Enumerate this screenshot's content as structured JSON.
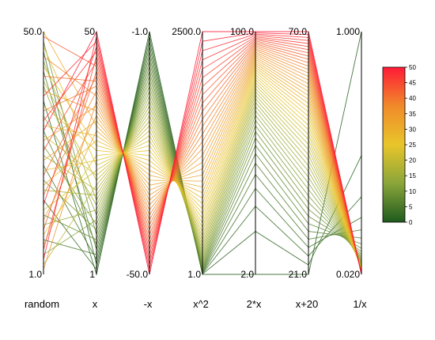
{
  "chart_data": {
    "type": "parallel-coordinates",
    "title": "",
    "axes": [
      {
        "name": "random",
        "top_label": "50.0",
        "bottom_label": "1.0",
        "range": [
          1,
          50
        ],
        "scale": "linear",
        "inverted": false
      },
      {
        "name": "x",
        "top_label": "50",
        "bottom_label": "1",
        "range": [
          1,
          50
        ],
        "scale": "linear",
        "inverted": false
      },
      {
        "name": "-x",
        "top_label": "-1.0",
        "bottom_label": "-50.0",
        "range": [
          -50,
          -1
        ],
        "scale": "linear",
        "inverted": false
      },
      {
        "name": "x^2",
        "top_label": "2500.0",
        "bottom_label": "1.0",
        "range": [
          1,
          2500
        ],
        "scale": "linear",
        "inverted": false
      },
      {
        "name": "2*x",
        "top_label": "100.0",
        "bottom_label": "2.0",
        "range": [
          2,
          100
        ],
        "scale": "log",
        "inverted": false
      },
      {
        "name": "x+20",
        "top_label": "70.0",
        "bottom_label": "21.0",
        "range": [
          21,
          70
        ],
        "scale": "log",
        "inverted": false
      },
      {
        "name": "1/x",
        "top_label": "1.000",
        "bottom_label": "0.020",
        "range": [
          0.02,
          1
        ],
        "scale": "linear",
        "inverted": false
      }
    ],
    "samples_x": [
      1,
      2,
      3,
      4,
      5,
      6,
      7,
      8,
      9,
      10,
      11,
      12,
      13,
      14,
      15,
      16,
      17,
      18,
      19,
      20,
      21,
      22,
      23,
      24,
      25,
      26,
      27,
      28,
      29,
      30,
      31,
      32,
      33,
      34,
      35,
      36,
      37,
      38,
      39,
      40,
      41,
      42,
      43,
      44,
      45,
      46,
      47,
      48,
      49,
      50
    ],
    "random_values": [
      36,
      16,
      46,
      23,
      8,
      42,
      30,
      13,
      48,
      20,
      27,
      5,
      39,
      11,
      33,
      44,
      18,
      25,
      3,
      40,
      29,
      14,
      47,
      22,
      9,
      35,
      43,
      19,
      31,
      7,
      50,
      24,
      12,
      38,
      28,
      2,
      45,
      17,
      34,
      41,
      21,
      10,
      49,
      26,
      6,
      32,
      15,
      37,
      4,
      30
    ],
    "color_by": "x",
    "colorbar": {
      "min": 0,
      "max": 50,
      "ticks": [
        "0",
        "5",
        "10",
        "15",
        "20",
        "25",
        "30",
        "35",
        "40",
        "45",
        "50"
      ],
      "stops": [
        "#1e5a1e",
        "#8aa53a",
        "#e8c52a",
        "#f08a2a",
        "#ff1a36"
      ]
    }
  }
}
